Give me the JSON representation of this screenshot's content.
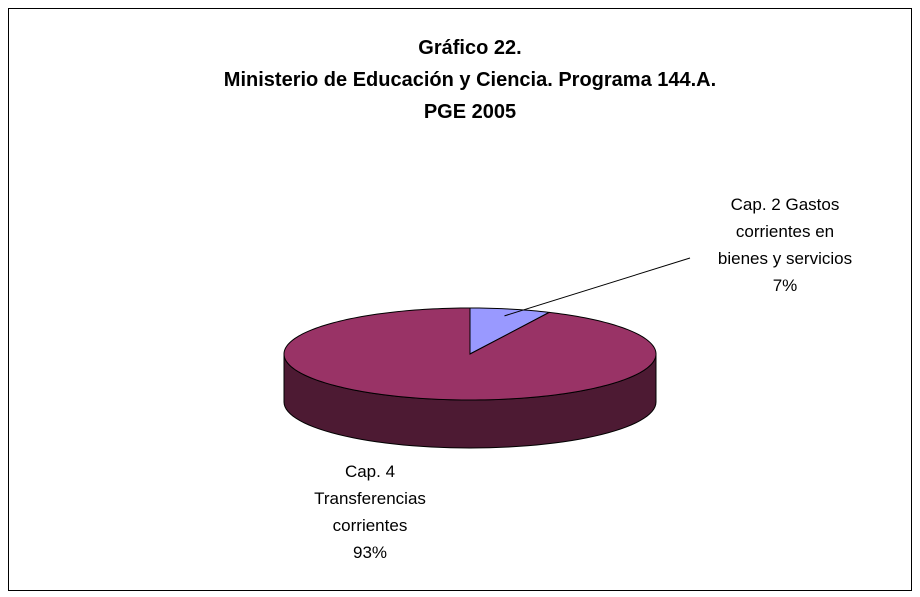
{
  "chart_data": {
    "type": "pie3d",
    "title": [
      "Gráfico 22.",
      "Ministerio de Educación y Ciencia. Programa 144.A.",
      "PGE 2005"
    ],
    "categories": [
      "Cap. 2 Gastos corrientes en bienes y servicios",
      "Cap. 4 Transferencias corrientes"
    ],
    "values": [
      7,
      93
    ],
    "value_labels": [
      "7%",
      "93%"
    ],
    "colors": [
      "#9999ff",
      "#993366"
    ]
  }
}
